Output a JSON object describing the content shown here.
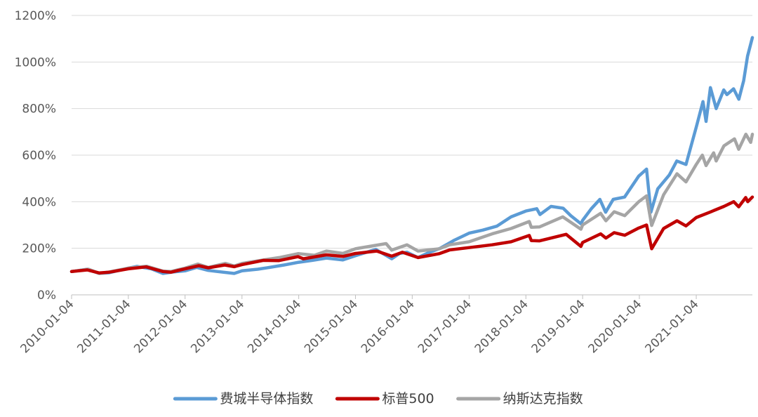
{
  "chart_data": {
    "type": "line",
    "title": "",
    "xlabel": "",
    "ylabel": "",
    "ylim": [
      0,
      1200
    ],
    "y_ticks": [
      "0%",
      "200%",
      "400%",
      "600%",
      "800%",
      "1000%",
      "1200%"
    ],
    "y_tick_values": [
      0,
      200,
      400,
      600,
      800,
      1000,
      1200
    ],
    "x_tick_labels": [
      "2010-01-04",
      "2011-01-04",
      "2012-01-04",
      "2013-01-04",
      "2014-01-04",
      "2015-01-04",
      "2016-01-04",
      "2017-01-04",
      "2018-01-04",
      "2019-01-04",
      "2020-01-04",
      "2021-01-04"
    ],
    "x_range": [
      "2010-01-04",
      "2021-12-31"
    ],
    "grid": "horizontal",
    "legend_position": "bottom",
    "series": [
      {
        "name": "费城半导体指数",
        "color": "#5b9bd5",
        "points": [
          [
            "2010-01-04",
            100
          ],
          [
            "2010-04-15",
            110
          ],
          [
            "2010-07-01",
            92
          ],
          [
            "2010-09-01",
            95
          ],
          [
            "2011-01-04",
            115
          ],
          [
            "2011-03-01",
            122
          ],
          [
            "2011-06-01",
            112
          ],
          [
            "2011-08-15",
            92
          ],
          [
            "2011-10-15",
            98
          ],
          [
            "2012-01-04",
            103
          ],
          [
            "2012-03-20",
            118
          ],
          [
            "2012-06-01",
            105
          ],
          [
            "2012-08-01",
            100
          ],
          [
            "2012-11-15",
            92
          ],
          [
            "2013-01-04",
            103
          ],
          [
            "2013-04-15",
            110
          ],
          [
            "2013-07-01",
            118
          ],
          [
            "2013-10-01",
            128
          ],
          [
            "2014-01-04",
            140
          ],
          [
            "2014-04-01",
            148
          ],
          [
            "2014-07-01",
            158
          ],
          [
            "2014-10-15",
            150
          ],
          [
            "2015-01-04",
            168
          ],
          [
            "2015-03-01",
            180
          ],
          [
            "2015-05-15",
            195
          ],
          [
            "2015-08-25",
            155
          ],
          [
            "2015-10-15",
            178
          ],
          [
            "2015-12-01",
            183
          ],
          [
            "2016-02-10",
            160
          ],
          [
            "2016-04-15",
            180
          ],
          [
            "2016-07-01",
            200
          ],
          [
            "2016-10-01",
            235
          ],
          [
            "2017-01-04",
            265
          ],
          [
            "2017-04-01",
            278
          ],
          [
            "2017-07-01",
            295
          ],
          [
            "2017-10-01",
            335
          ],
          [
            "2018-01-04",
            360
          ],
          [
            "2018-03-15",
            370
          ],
          [
            "2018-04-05",
            345
          ],
          [
            "2018-06-15",
            380
          ],
          [
            "2018-09-01",
            372
          ],
          [
            "2018-10-20",
            340
          ],
          [
            "2018-12-24",
            305
          ],
          [
            "2019-01-04",
            320
          ],
          [
            "2019-03-01",
            370
          ],
          [
            "2019-04-25",
            410
          ],
          [
            "2019-06-01",
            355
          ],
          [
            "2019-07-20",
            410
          ],
          [
            "2019-10-01",
            420
          ],
          [
            "2019-12-31",
            510
          ],
          [
            "2020-02-19",
            540
          ],
          [
            "2020-03-18",
            355
          ],
          [
            "2020-05-01",
            455
          ],
          [
            "2020-07-15",
            515
          ],
          [
            "2020-09-01",
            575
          ],
          [
            "2020-10-30",
            560
          ],
          [
            "2021-01-04",
            720
          ],
          [
            "2021-02-16",
            830
          ],
          [
            "2021-03-08",
            745
          ],
          [
            "2021-04-05",
            890
          ],
          [
            "2021-05-12",
            800
          ],
          [
            "2021-06-30",
            880
          ],
          [
            "2021-07-20",
            860
          ],
          [
            "2021-09-01",
            885
          ],
          [
            "2021-10-05",
            840
          ],
          [
            "2021-11-05",
            920
          ],
          [
            "2021-11-30",
            1025
          ],
          [
            "2021-12-31",
            1105
          ]
        ]
      },
      {
        "name": "标普500",
        "color": "#c00000",
        "points": [
          [
            "2010-01-04",
            100
          ],
          [
            "2010-04-15",
            107
          ],
          [
            "2010-07-01",
            94
          ],
          [
            "2010-09-01",
            97
          ],
          [
            "2011-01-04",
            112
          ],
          [
            "2011-04-29",
            120
          ],
          [
            "2011-08-15",
            100
          ],
          [
            "2011-10-04",
            97
          ],
          [
            "2012-01-04",
            112
          ],
          [
            "2012-04-01",
            125
          ],
          [
            "2012-06-01",
            116
          ],
          [
            "2012-09-15",
            128
          ],
          [
            "2012-11-15",
            121
          ],
          [
            "2013-01-04",
            130
          ],
          [
            "2013-05-21",
            148
          ],
          [
            "2013-08-30",
            147
          ],
          [
            "2013-12-31",
            164
          ],
          [
            "2014-02-03",
            155
          ],
          [
            "2014-07-01",
            172
          ],
          [
            "2014-10-15",
            165
          ],
          [
            "2015-01-04",
            178
          ],
          [
            "2015-05-21",
            188
          ],
          [
            "2015-08-25",
            166
          ],
          [
            "2015-11-01",
            183
          ],
          [
            "2016-02-11",
            160
          ],
          [
            "2016-06-27",
            177
          ],
          [
            "2016-09-01",
            193
          ],
          [
            "2017-01-04",
            203
          ],
          [
            "2017-06-01",
            215
          ],
          [
            "2017-10-01",
            228
          ],
          [
            "2018-01-26",
            255
          ],
          [
            "2018-02-08",
            233
          ],
          [
            "2018-04-02",
            232
          ],
          [
            "2018-09-20",
            260
          ],
          [
            "2018-12-24",
            208
          ],
          [
            "2019-01-04",
            225
          ],
          [
            "2019-04-30",
            262
          ],
          [
            "2019-06-03",
            244
          ],
          [
            "2019-07-26",
            267
          ],
          [
            "2019-10-02",
            256
          ],
          [
            "2019-12-31",
            287
          ],
          [
            "2020-02-19",
            300
          ],
          [
            "2020-03-23",
            198
          ],
          [
            "2020-06-08",
            285
          ],
          [
            "2020-09-02",
            318
          ],
          [
            "2020-10-30",
            296
          ],
          [
            "2021-01-04",
            332
          ],
          [
            "2021-04-01",
            355
          ],
          [
            "2021-07-01",
            380
          ],
          [
            "2021-09-02",
            400
          ],
          [
            "2021-10-04",
            378
          ],
          [
            "2021-11-18",
            418
          ],
          [
            "2021-12-01",
            400
          ],
          [
            "2021-12-31",
            420
          ]
        ]
      },
      {
        "name": "纳斯达克指数",
        "color": "#a5a5a5",
        "points": [
          [
            "2010-01-04",
            100
          ],
          [
            "2010-04-23",
            110
          ],
          [
            "2010-07-02",
            92
          ],
          [
            "2010-09-01",
            98
          ],
          [
            "2011-01-04",
            115
          ],
          [
            "2011-05-01",
            123
          ],
          [
            "2011-08-15",
            102
          ],
          [
            "2011-10-04",
            100
          ],
          [
            "2012-01-04",
            115
          ],
          [
            "2012-03-26",
            132
          ],
          [
            "2012-06-01",
            118
          ],
          [
            "2012-09-19",
            135
          ],
          [
            "2012-11-15",
            124
          ],
          [
            "2013-01-04",
            135
          ],
          [
            "2013-05-21",
            150
          ],
          [
            "2013-09-01",
            160
          ],
          [
            "2013-12-31",
            177
          ],
          [
            "2014-04-15",
            170
          ],
          [
            "2014-07-01",
            188
          ],
          [
            "2014-10-15",
            178
          ],
          [
            "2015-01-04",
            198
          ],
          [
            "2015-07-20",
            220
          ],
          [
            "2015-08-25",
            192
          ],
          [
            "2015-12-01",
            215
          ],
          [
            "2016-02-11",
            188
          ],
          [
            "2016-06-27",
            198
          ],
          [
            "2016-09-01",
            215
          ],
          [
            "2017-01-04",
            228
          ],
          [
            "2017-06-01",
            262
          ],
          [
            "2017-10-01",
            285
          ],
          [
            "2018-01-26",
            315
          ],
          [
            "2018-02-08",
            290
          ],
          [
            "2018-04-02",
            292
          ],
          [
            "2018-08-29",
            335
          ],
          [
            "2018-12-24",
            282
          ],
          [
            "2019-01-04",
            300
          ],
          [
            "2019-04-30",
            350
          ],
          [
            "2019-06-03",
            318
          ],
          [
            "2019-07-26",
            357
          ],
          [
            "2019-10-02",
            340
          ],
          [
            "2019-12-31",
            400
          ],
          [
            "2020-02-19",
            425
          ],
          [
            "2020-03-23",
            298
          ],
          [
            "2020-06-08",
            430
          ],
          [
            "2020-09-02",
            520
          ],
          [
            "2020-10-30",
            485
          ],
          [
            "2021-01-04",
            560
          ],
          [
            "2021-02-12",
            600
          ],
          [
            "2021-03-08",
            555
          ],
          [
            "2021-04-26",
            610
          ],
          [
            "2021-05-12",
            575
          ],
          [
            "2021-07-01",
            640
          ],
          [
            "2021-09-07",
            670
          ],
          [
            "2021-10-04",
            625
          ],
          [
            "2021-11-19",
            690
          ],
          [
            "2021-12-20",
            655
          ],
          [
            "2021-12-31",
            690
          ]
        ]
      }
    ]
  }
}
